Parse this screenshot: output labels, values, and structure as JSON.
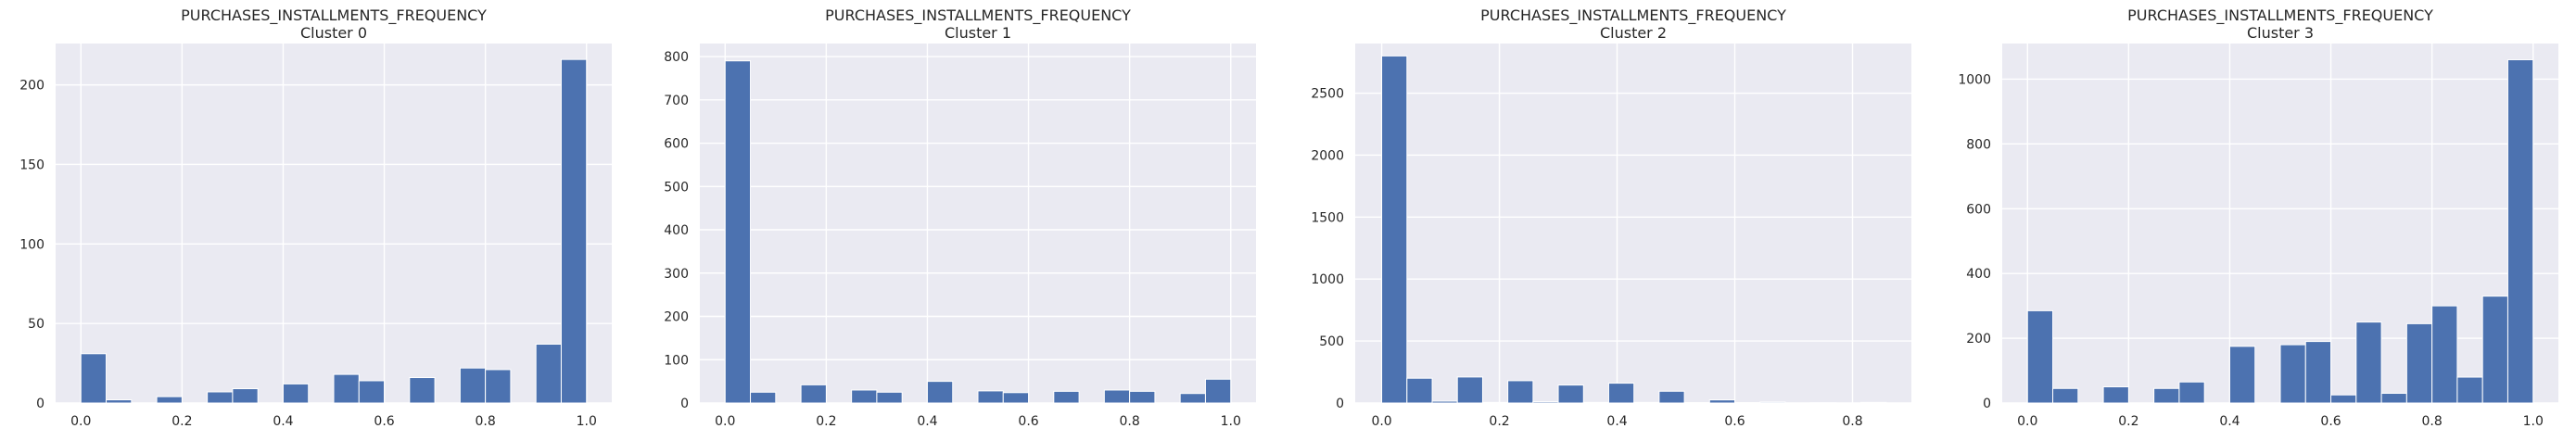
{
  "chart_data": [
    {
      "type": "bar",
      "title": "PURCHASES_INSTALLMENTS_FREQUENCY",
      "subtitle": "Cluster 0",
      "xlabel": "",
      "ylabel": "",
      "xlim": [
        -0.05,
        1.05
      ],
      "ylim": [
        0,
        226
      ],
      "xticks": [
        0.0,
        0.2,
        0.4,
        0.6,
        0.8,
        1.0
      ],
      "xtick_labels": [
        "0.0",
        "0.2",
        "0.4",
        "0.6",
        "0.8",
        "1.0"
      ],
      "yticks": [
        0,
        50,
        100,
        150,
        200
      ],
      "ytick_labels": [
        "0",
        "50",
        "100",
        "150",
        "200"
      ],
      "bin_width": 0.05,
      "bin_starts": [
        0.0,
        0.05,
        0.15,
        0.25,
        0.3,
        0.4,
        0.5,
        0.55,
        0.65,
        0.75,
        0.8,
        0.9,
        0.95
      ],
      "values": [
        31,
        2,
        4,
        7,
        9,
        12,
        18,
        14,
        16,
        22,
        21,
        37,
        216
      ],
      "grid": true
    },
    {
      "type": "bar",
      "title": "PURCHASES_INSTALLMENTS_FREQUENCY",
      "subtitle": "Cluster 1",
      "xlabel": "",
      "ylabel": "",
      "xlim": [
        -0.05,
        1.05
      ],
      "ylim": [
        0,
        830
      ],
      "xticks": [
        0.0,
        0.2,
        0.4,
        0.6,
        0.8,
        1.0
      ],
      "xtick_labels": [
        "0.0",
        "0.2",
        "0.4",
        "0.6",
        "0.8",
        "1.0"
      ],
      "yticks": [
        0,
        100,
        200,
        300,
        400,
        500,
        600,
        700,
        800
      ],
      "ytick_labels": [
        "0",
        "100",
        "200",
        "300",
        "400",
        "500",
        "600",
        "700",
        "800"
      ],
      "bin_width": 0.05,
      "bin_starts": [
        0.0,
        0.05,
        0.15,
        0.25,
        0.3,
        0.4,
        0.5,
        0.55,
        0.65,
        0.75,
        0.8,
        0.9,
        0.95
      ],
      "values": [
        790,
        25,
        42,
        30,
        25,
        50,
        28,
        24,
        27,
        30,
        27,
        22,
        55
      ],
      "grid": true
    },
    {
      "type": "bar",
      "title": "PURCHASES_INSTALLMENTS_FREQUENCY",
      "subtitle": "Cluster 2",
      "xlabel": "",
      "ylabel": "",
      "xlim": [
        -0.045,
        0.9
      ],
      "ylim": [
        0,
        2900
      ],
      "xticks": [
        0.0,
        0.2,
        0.4,
        0.6,
        0.8
      ],
      "xtick_labels": [
        "0.0",
        "0.2",
        "0.4",
        "0.6",
        "0.8"
      ],
      "yticks": [
        0,
        500,
        1000,
        1500,
        2000,
        2500
      ],
      "ytick_labels": [
        "0",
        "500",
        "1000",
        "1500",
        "2000",
        "2500"
      ],
      "bin_width": 0.0429,
      "bin_starts": [
        0.0,
        0.0429,
        0.0857,
        0.1286,
        0.1714,
        0.2143,
        0.2571,
        0.3,
        0.3429,
        0.3857,
        0.4286,
        0.4714,
        0.5143,
        0.5571,
        0.6,
        0.6429,
        0.6857,
        0.7286,
        0.7714,
        0.8143
      ],
      "values": [
        2800,
        200,
        15,
        210,
        5,
        180,
        10,
        145,
        5,
        160,
        5,
        95,
        3,
        25,
        3,
        8,
        0,
        2,
        0,
        5
      ],
      "grid": true
    },
    {
      "type": "bar",
      "title": "PURCHASES_INSTALLMENTS_FREQUENCY",
      "subtitle": "Cluster 3",
      "xlabel": "",
      "ylabel": "",
      "xlim": [
        -0.05,
        1.05
      ],
      "ylim": [
        0,
        1110
      ],
      "xticks": [
        0.0,
        0.2,
        0.4,
        0.6,
        0.8,
        1.0
      ],
      "xtick_labels": [
        "0.0",
        "0.2",
        "0.4",
        "0.6",
        "0.8",
        "1.0"
      ],
      "yticks": [
        0,
        200,
        400,
        600,
        800,
        1000
      ],
      "ytick_labels": [
        "0",
        "200",
        "400",
        "600",
        "800",
        "1000"
      ],
      "bin_width": 0.05,
      "bin_starts": [
        0.0,
        0.05,
        0.15,
        0.25,
        0.3,
        0.4,
        0.5,
        0.55,
        0.6,
        0.65,
        0.7,
        0.75,
        0.8,
        0.85,
        0.9,
        0.95
      ],
      "values": [
        285,
        45,
        50,
        45,
        65,
        175,
        180,
        190,
        25,
        250,
        30,
        245,
        300,
        80,
        330,
        1060
      ],
      "grid": true
    }
  ],
  "colors": {
    "bar": "#4c72b0",
    "plot_bg": "#eaeaf2",
    "grid": "#ffffff",
    "text": "#262626"
  }
}
